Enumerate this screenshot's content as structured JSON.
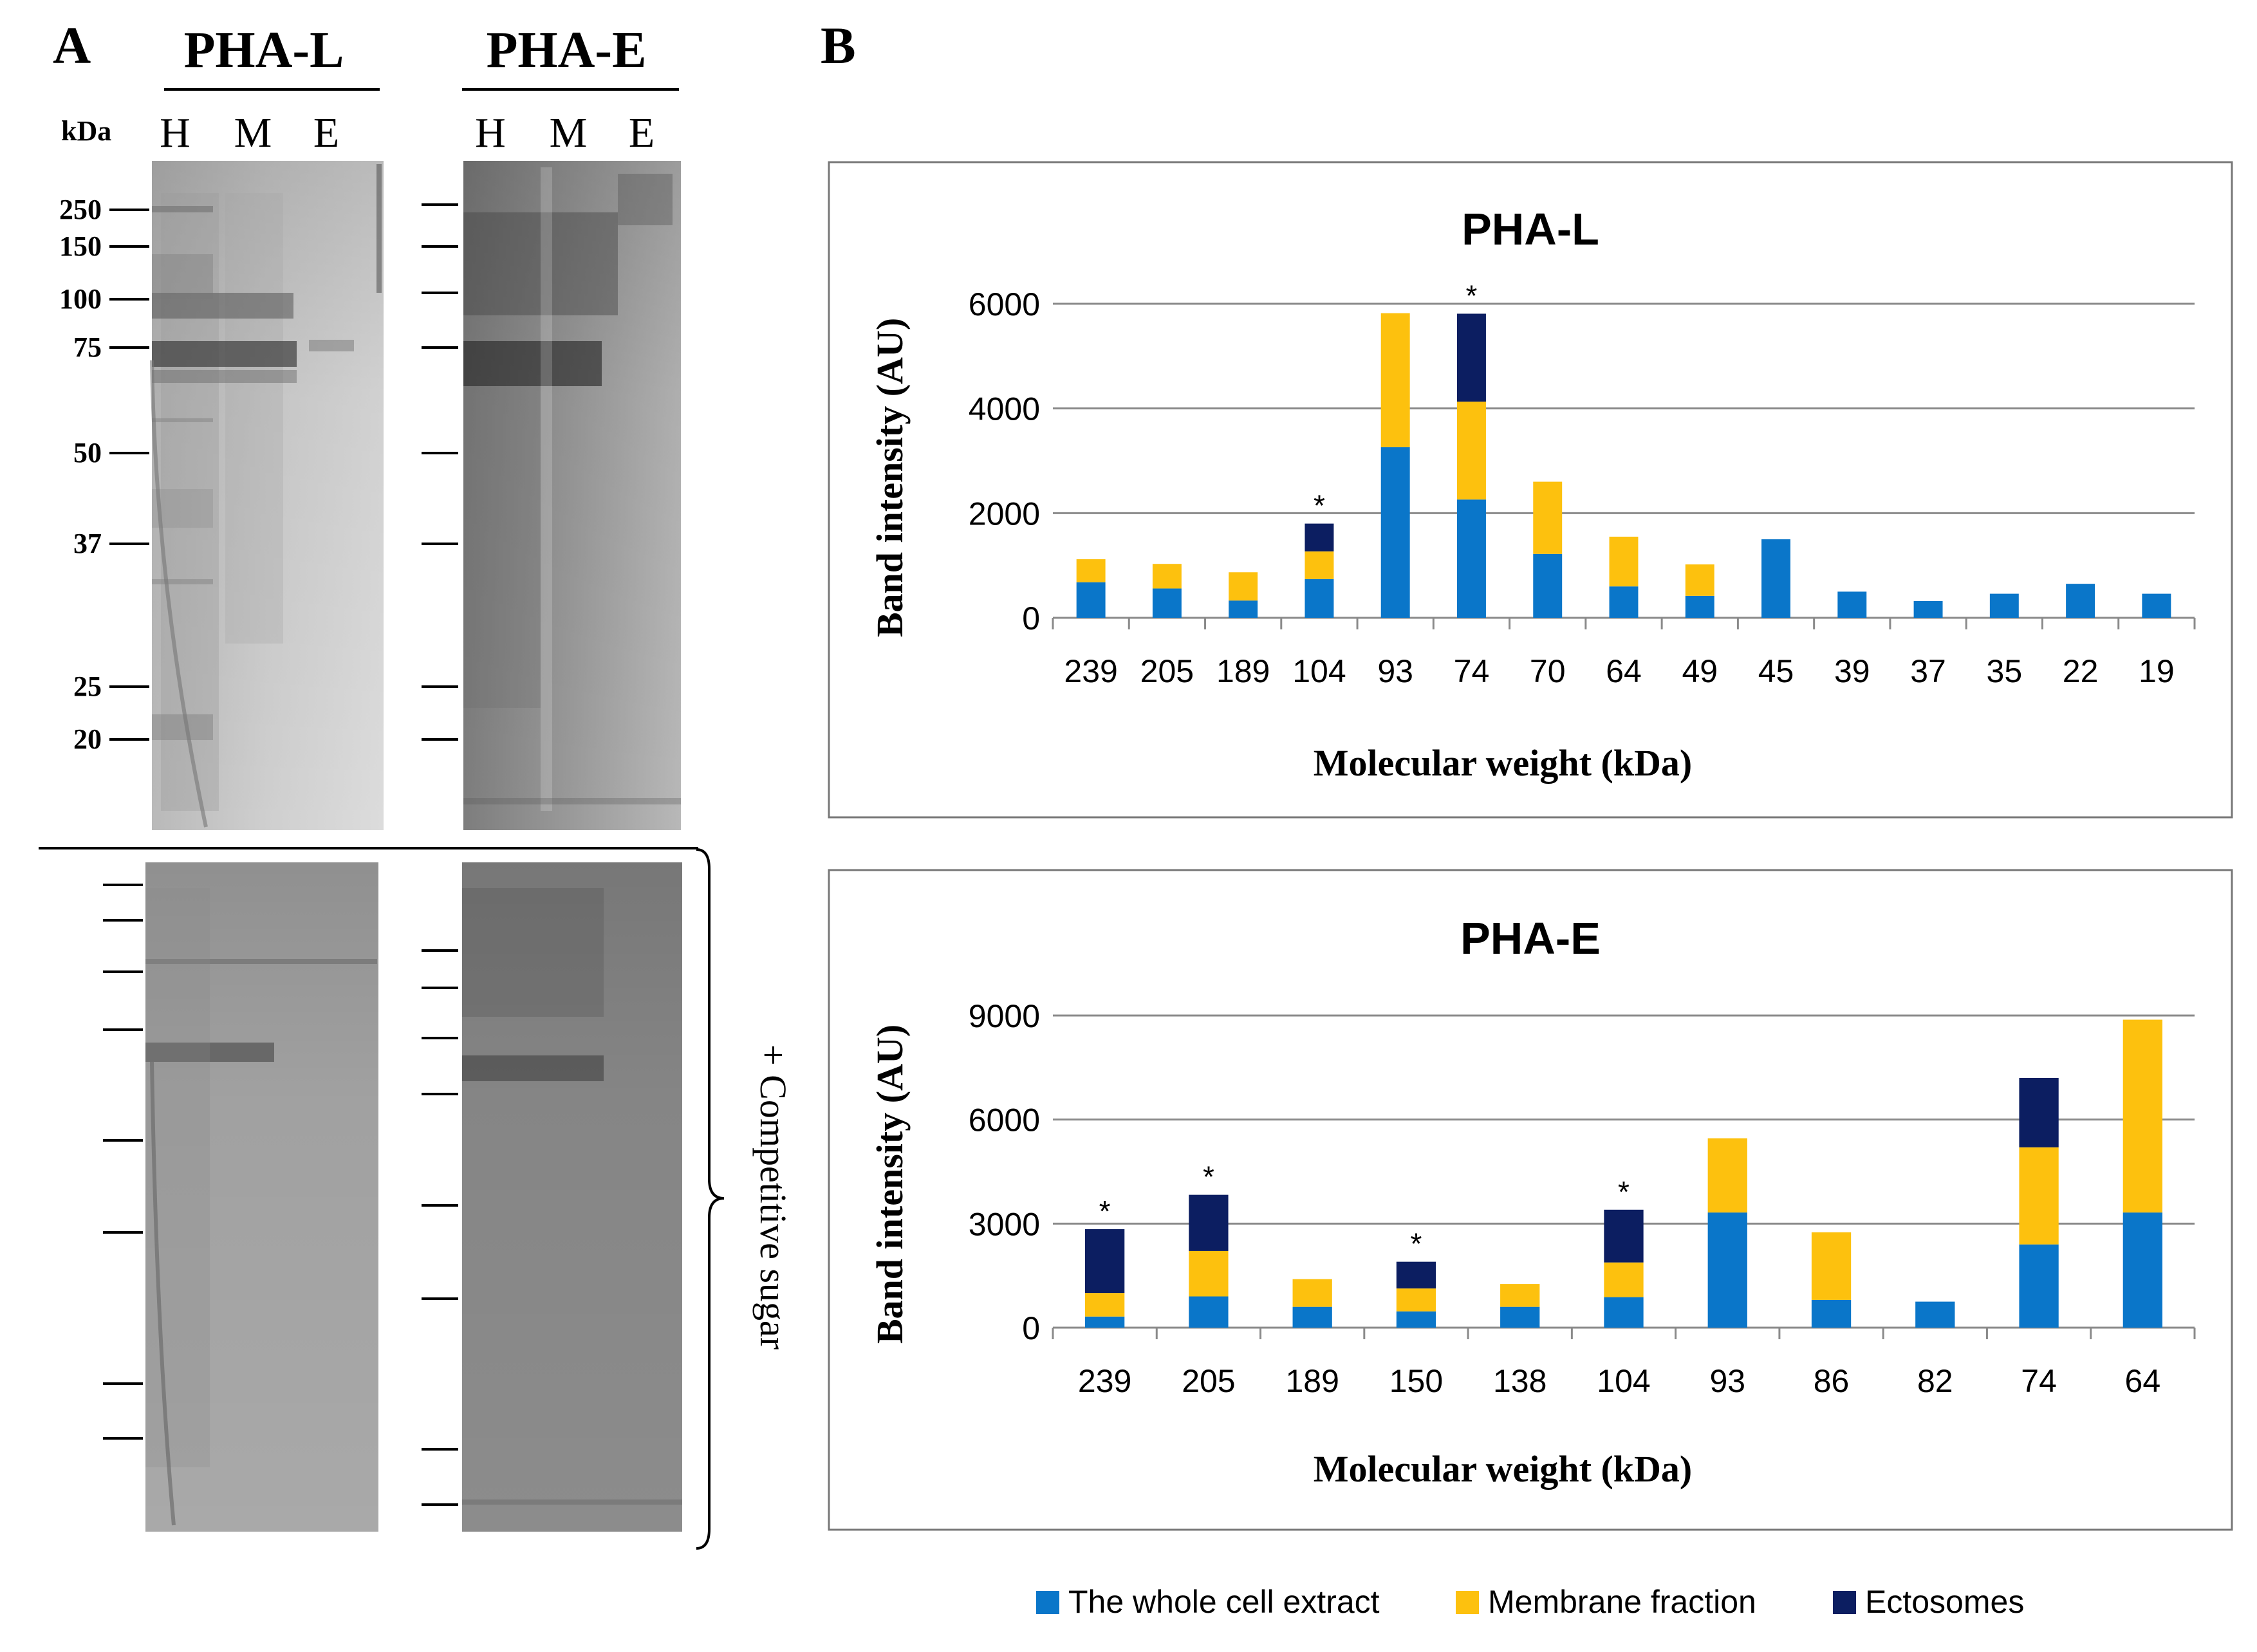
{
  "panel_a": {
    "label": "A",
    "groups": [
      {
        "name": "PHA-L",
        "lanes": [
          "H",
          "M",
          "E"
        ]
      },
      {
        "name": "PHA-E",
        "lanes": [
          "H",
          "M",
          "E"
        ]
      }
    ],
    "kda_label": "kDa",
    "markers": [
      "250",
      "150",
      "100",
      "75",
      "50",
      "37",
      "25",
      "20"
    ],
    "competitive_sugar_label": "+ Competitive sugar"
  },
  "panel_b": {
    "label": "B"
  },
  "chart_data": [
    {
      "type": "bar",
      "stacked": true,
      "title": "PHA-L",
      "xlabel": "Molecular weight (kDa)",
      "ylabel": "Band intensity (AU)",
      "ylim": [
        0,
        6000
      ],
      "yticks": [
        0,
        2000,
        4000,
        6000
      ],
      "grid": true,
      "categories": [
        "239",
        "205",
        "189",
        "104",
        "93",
        "74",
        "70",
        "64",
        "49",
        "45",
        "39",
        "37",
        "35",
        "22",
        "19"
      ],
      "series": [
        {
          "name": "The whole cell extract",
          "color": "#0a76c9",
          "values": [
            680,
            560,
            330,
            740,
            3260,
            2260,
            1220,
            600,
            420,
            1500,
            500,
            320,
            460,
            650,
            460
          ]
        },
        {
          "name": "Membrane fraction",
          "color": "#fdc10e",
          "values": [
            440,
            470,
            540,
            530,
            2560,
            1870,
            1380,
            950,
            600,
            0,
            0,
            0,
            0,
            0,
            0
          ]
        },
        {
          "name": "Ectosomes",
          "color": "#0c1e61",
          "values": [
            0,
            0,
            0,
            530,
            0,
            1680,
            0,
            0,
            0,
            0,
            0,
            0,
            0,
            0,
            0
          ]
        }
      ],
      "asterisks": [
        "104",
        "74"
      ],
      "asterisk_symbol": "*"
    },
    {
      "type": "bar",
      "stacked": true,
      "title": "PHA-E",
      "xlabel": "Molecular weight (kDa)",
      "ylabel": "Band intensity (AU)",
      "ylim": [
        0,
        9000
      ],
      "yticks": [
        0,
        3000,
        6000,
        9000
      ],
      "grid": true,
      "categories": [
        "239",
        "205",
        "189",
        "150",
        "138",
        "104",
        "93",
        "86",
        "82",
        "74",
        "64"
      ],
      "series": [
        {
          "name": "The whole cell extract",
          "color": "#0a76c9",
          "values": [
            320,
            900,
            600,
            470,
            600,
            880,
            3320,
            800,
            750,
            2400,
            3320
          ]
        },
        {
          "name": "Membrane fraction",
          "color": "#fdc10e",
          "values": [
            680,
            1310,
            800,
            660,
            660,
            1000,
            2140,
            1950,
            0,
            2800,
            5560
          ]
        },
        {
          "name": "Ectosomes",
          "color": "#0c1e61",
          "values": [
            1840,
            1620,
            0,
            770,
            0,
            1520,
            0,
            0,
            0,
            2000,
            0
          ]
        }
      ],
      "asterisks": [
        "239",
        "205",
        "150",
        "104"
      ],
      "asterisk_symbol": "*"
    }
  ],
  "legend": [
    {
      "name": "The whole cell extract",
      "color": "#0a76c9"
    },
    {
      "name": "Membrane fraction",
      "color": "#fdc10e"
    },
    {
      "name": "Ectosomes",
      "color": "#0c1e61"
    }
  ],
  "colors": {
    "blue": "#0a76c9",
    "yellow": "#fdc10e",
    "navy": "#0c1e61",
    "gel_light": "#c9c9c9",
    "gel_dark": "#8a8a8a"
  }
}
